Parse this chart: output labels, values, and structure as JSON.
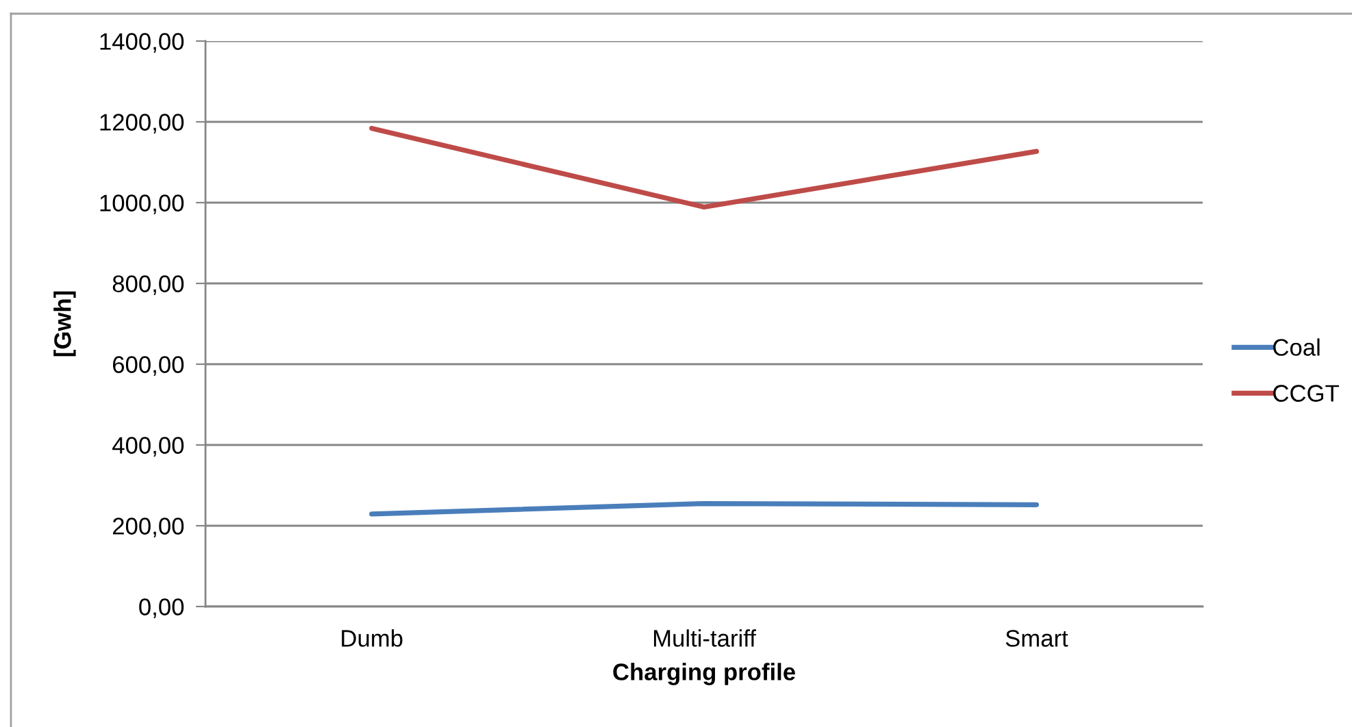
{
  "chart_data": {
    "type": "line",
    "categories": [
      "Dumb",
      "Multi-tariff",
      "Smart"
    ],
    "series": [
      {
        "name": "Coal",
        "color": "#4a7ebb",
        "values": [
          229,
          255,
          252
        ]
      },
      {
        "name": "CCGT",
        "color": "#be4b48",
        "values": [
          1184,
          989,
          1127
        ]
      }
    ],
    "xlabel": "Charging profile",
    "ylabel": "[Gwh]",
    "ylim": [
      0,
      1400
    ],
    "yticks": [
      {
        "value": 0,
        "label": "0,00"
      },
      {
        "value": 200,
        "label": "200,00"
      },
      {
        "value": 400,
        "label": "400,00"
      },
      {
        "value": 600,
        "label": "600,00"
      },
      {
        "value": 800,
        "label": "800,00"
      },
      {
        "value": 1000,
        "label": "1000,00"
      },
      {
        "value": 1200,
        "label": "1200,00"
      },
      {
        "value": 1400,
        "label": "1400,00"
      }
    ],
    "grid": "y",
    "legend": "right"
  }
}
